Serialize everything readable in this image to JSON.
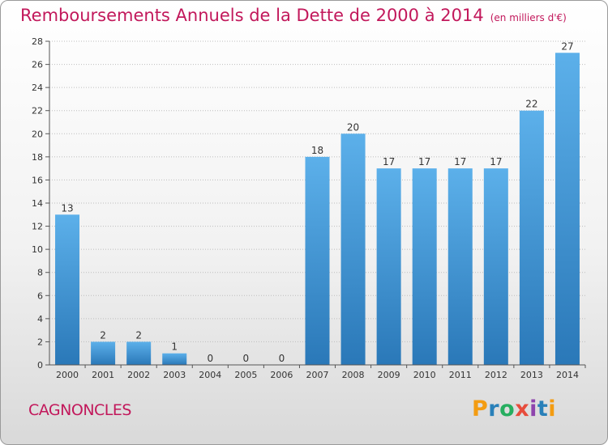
{
  "header": {
    "title": "Remboursements Annuels de la Dette de 2000 à 2014",
    "unit": "(en milliers d'€)"
  },
  "footer": {
    "place": "CAGNONCLES",
    "logo": {
      "letters": [
        "P",
        "r",
        "o",
        "x",
        "i",
        "t",
        "i"
      ],
      "colors": [
        "#f39c12",
        "#2980b9",
        "#27ae60",
        "#e74c3c",
        "#8e44ad",
        "#2980b9",
        "#f39c12"
      ]
    }
  },
  "colors": {
    "bar_top": "#5cb0ea",
    "bar_bottom": "#2a78b8",
    "title": "#c2185b",
    "grid": "#bdbdbd"
  },
  "chart_data": {
    "type": "bar",
    "title": "Remboursements Annuels de la Dette de 2000 à 2014",
    "subtitle": "(en milliers d'€)",
    "categories": [
      "2000",
      "2001",
      "2002",
      "2003",
      "2004",
      "2005",
      "2006",
      "2007",
      "2008",
      "2009",
      "2010",
      "2011",
      "2012",
      "2013",
      "2014"
    ],
    "values": [
      13,
      2,
      2,
      1,
      0,
      0,
      0,
      18,
      20,
      17,
      17,
      17,
      17,
      22,
      27
    ],
    "yticks": [
      0,
      2,
      4,
      6,
      8,
      10,
      12,
      14,
      16,
      18,
      20,
      22,
      24,
      26,
      28
    ],
    "ylim": [
      0,
      28
    ],
    "grid": true
  }
}
